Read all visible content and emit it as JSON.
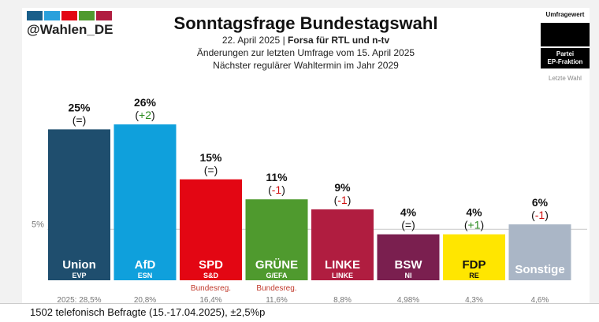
{
  "brand": {
    "handle": "@Wahlen_DE",
    "stripe_colors": [
      "#1a5f8a",
      "#2aa0dc",
      "#e30613",
      "#4f9a2e",
      "#b01d40"
    ]
  },
  "header": {
    "title": "Sonntagsfrage Bundestagswahl",
    "date": "22. April 2025",
    "pollster": "Forsa für RTL und n-tv",
    "change_note": "Änderungen zur letzten Umfrage vom 15. April 2025",
    "next_election": "Nächster regulärer Wahltermin im Jahr 2029"
  },
  "legend": {
    "value": "Umfragewert",
    "party": "Partei",
    "fraction": "EP-Fraktion",
    "last": "Letzte Wahl"
  },
  "chart_data": {
    "type": "bar",
    "threshold_label": "5%",
    "threshold": 5,
    "ylim": [
      0,
      26
    ],
    "categories": [
      "Union",
      "AfD",
      "SPD",
      "GRÜNE",
      "LINKE",
      "BSW",
      "FDP",
      "Sonstige"
    ],
    "values": [
      25,
      26,
      15,
      11,
      9,
      4,
      4,
      6
    ],
    "value_labels": [
      "25%",
      "26%",
      "15%",
      "11%",
      "9%",
      "4%",
      "4%",
      "6%"
    ],
    "changes": [
      "(=)",
      "(+2)",
      "(=)",
      "(-1)",
      "(-1)",
      "(=)",
      "(+1)",
      "(-1)"
    ],
    "change_kinds": [
      "eq",
      "up",
      "eq",
      "down",
      "down",
      "eq",
      "up",
      "down"
    ],
    "ep_fractions": [
      "EVP",
      "ESN",
      "S&D",
      "G/EFA",
      "LINKE",
      "NI",
      "RE",
      ""
    ],
    "colors": [
      "#1f4e6e",
      "#0fa0dc",
      "#e30613",
      "#4f9a2e",
      "#b01d40",
      "#7a1f4f",
      "#ffe600",
      "#aab6c6"
    ],
    "label_colors": [
      "#ffffff",
      "#ffffff",
      "#ffffff",
      "#ffffff",
      "#ffffff",
      "#ffffff",
      "#111111",
      "#ffffff"
    ],
    "gov_notes": [
      "",
      "",
      "Bundesreg.",
      "Bundesreg.",
      "",
      "",
      "",
      ""
    ],
    "last_election": [
      "2025: 28,5%",
      "20,8%",
      "16,4%",
      "11,6%",
      "8,8%",
      "4,98%",
      "4,3%",
      "4,6%"
    ]
  },
  "footer": {
    "note": "1502 telefonisch Befragte (15.-17.04.2025), ±2,5%p"
  }
}
